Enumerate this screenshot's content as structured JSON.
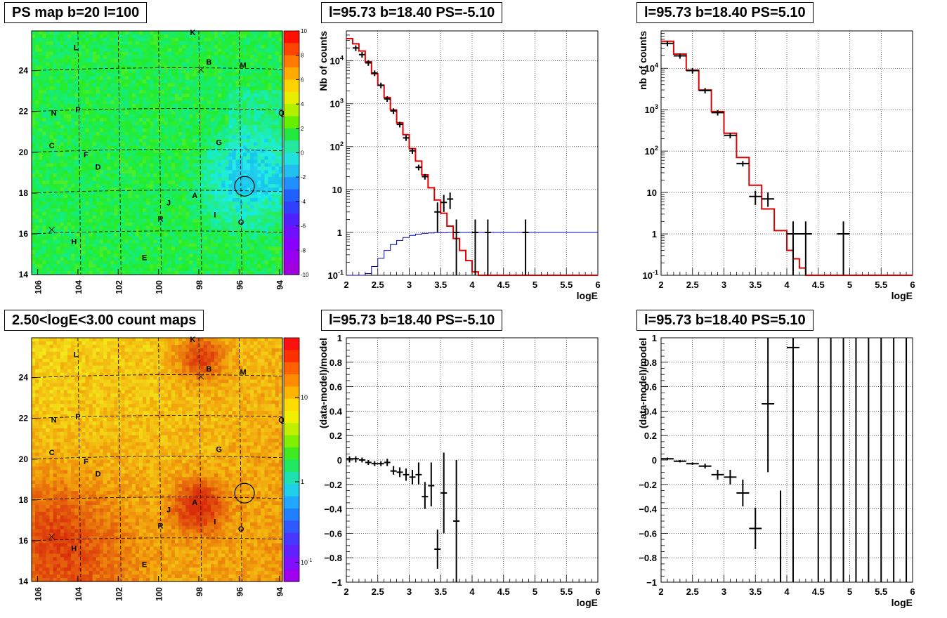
{
  "map_labels": [
    {
      "t": "K",
      "l": 98.3,
      "b": 25.75
    },
    {
      "t": "L",
      "l": 104.1,
      "b": 25.0
    },
    {
      "t": "B",
      "l": 97.5,
      "b": 24.3
    },
    {
      "t": "M",
      "l": 95.8,
      "b": 24.15
    },
    {
      "t": "N",
      "l": 105.2,
      "b": 21.8
    },
    {
      "t": "P",
      "l": 104.0,
      "b": 21.95
    },
    {
      "t": "Q",
      "l": 93.9,
      "b": 21.8
    },
    {
      "t": "C",
      "l": 105.3,
      "b": 20.2
    },
    {
      "t": "F",
      "l": 103.6,
      "b": 19.75
    },
    {
      "t": "D",
      "l": 103.0,
      "b": 19.15
    },
    {
      "t": "G",
      "l": 97.0,
      "b": 20.35
    },
    {
      "t": "J",
      "l": 99.5,
      "b": 17.4
    },
    {
      "t": "A",
      "l": 98.2,
      "b": 17.75
    },
    {
      "t": "I",
      "l": 97.2,
      "b": 16.8
    },
    {
      "t": "R",
      "l": 99.9,
      "b": 16.6
    },
    {
      "t": "O",
      "l": 95.9,
      "b": 16.45
    },
    {
      "t": "H",
      "l": 104.2,
      "b": 15.5
    },
    {
      "t": "E",
      "l": 100.7,
      "b": 14.7
    }
  ],
  "map_crosses": [
    {
      "l": 97.9,
      "b": 24.05
    },
    {
      "l": 105.3,
      "b": 16.2
    }
  ],
  "map_circle": {
    "l": 95.73,
    "b": 18.4
  },
  "map_xticks": [
    "106",
    "104",
    "102",
    "100",
    "98",
    "96",
    "94"
  ],
  "map_yticks": [
    "14",
    "16",
    "18",
    "20",
    "22",
    "24"
  ],
  "psmap": {
    "title": "PS map b=20 l=100",
    "colorbar_ticks": [
      "10",
      "8",
      "6",
      "4",
      "2",
      "0",
      "-2",
      "-4",
      "-6",
      "-8",
      "-10"
    ]
  },
  "countmap": {
    "title": "2.50<logE<3.00 count maps",
    "colorbar_ticks": [
      "10",
      "1",
      "10-1"
    ]
  },
  "colors": {
    "psmap_base": "#4be83a",
    "countmap_base": "#f0c228",
    "model": "#e00000",
    "flat": "#0000c0"
  },
  "chart_data": [
    {
      "type": "line",
      "panel": "spectrum-ps-neg",
      "title": "l=95.73 b=18.40 PS=-5.10",
      "xlabel": "logE",
      "ylabel": "Nb of counts",
      "xlim": [
        2,
        6
      ],
      "ylim": [
        0.1,
        50000
      ],
      "yscale": "log",
      "grid": true,
      "xticks": [
        "2",
        "2.5",
        "3",
        "3.5",
        "4",
        "4.5",
        "5",
        "5.5",
        "6"
      ],
      "yticks": [
        {
          "v": 0.1,
          "t": "10",
          "sup": "-1"
        },
        {
          "v": 1,
          "t": "1",
          "sup": ""
        },
        {
          "v": 10,
          "t": "10",
          "sup": ""
        },
        {
          "v": 100,
          "t": "10",
          "sup": "2"
        },
        {
          "v": 1000,
          "t": "10",
          "sup": "3"
        },
        {
          "v": 10000,
          "t": "10",
          "sup": "4"
        }
      ],
      "model": {
        "edges": [
          2,
          2.1,
          2.2,
          2.3,
          2.4,
          2.5,
          2.6,
          2.7,
          2.8,
          2.9,
          3,
          3.1,
          3.2,
          3.3,
          3.4,
          3.5,
          3.6,
          3.7,
          3.8,
          3.9,
          4,
          4.1,
          4.2,
          4.3,
          4.4,
          4.5,
          4.6,
          4.7,
          4.8,
          4.9,
          5,
          5.1,
          5.2,
          5.3,
          5.4,
          5.5,
          5.6,
          5.7,
          5.8,
          5.9,
          6
        ],
        "values": [
          33000,
          25000,
          17000,
          9500,
          5000,
          2700,
          1400,
          720,
          360,
          190,
          90,
          46,
          22,
          11,
          5.7,
          2.8,
          1.4,
          0.72,
          0.38,
          0.22,
          0.12,
          0.1,
          0.1,
          0.1,
          0.1,
          0.1,
          0.1,
          0.1,
          0.1,
          0.1,
          0.1,
          0.1,
          0.1,
          0.1,
          0.1,
          0.1,
          0.1,
          0.1,
          0.1,
          0.1
        ]
      },
      "flat": {
        "edges": [
          2,
          2.1,
          2.2,
          2.3,
          2.4,
          2.5,
          2.6,
          2.7,
          2.8,
          2.9,
          3,
          3.1,
          3.2,
          3.3,
          3.4,
          3.5,
          3.6,
          3.7,
          3.8,
          3.9,
          4,
          4.1,
          4.2,
          4.3,
          4.4,
          4.5,
          4.6,
          4.7,
          4.8,
          4.9,
          5,
          5.1,
          5.2,
          5.3,
          5.4,
          5.5,
          5.6,
          5.7,
          5.8,
          5.9,
          6
        ],
        "values": [
          0.1,
          0.1,
          0.1,
          0.11,
          0.16,
          0.25,
          0.38,
          0.52,
          0.65,
          0.76,
          0.85,
          0.91,
          0.95,
          0.97,
          0.99,
          0.99,
          1,
          1,
          1,
          1,
          1,
          1,
          1,
          1,
          1,
          1,
          1,
          1,
          1,
          1,
          1,
          1,
          1,
          1,
          1,
          1,
          1,
          1,
          1,
          1,
          1
        ]
      },
      "points": [
        {
          "x": 2.15,
          "y": 20000,
          "xw": 0.05
        },
        {
          "x": 2.25,
          "y": 14000,
          "xw": 0.05
        },
        {
          "x": 2.35,
          "y": 9000,
          "xw": 0.05
        },
        {
          "x": 2.45,
          "y": 5200,
          "xw": 0.05
        },
        {
          "x": 2.55,
          "y": 2700,
          "xw": 0.05
        },
        {
          "x": 2.65,
          "y": 1300,
          "xw": 0.05
        },
        {
          "x": 2.75,
          "y": 680,
          "xw": 0.05
        },
        {
          "x": 2.85,
          "y": 330,
          "xw": 0.05
        },
        {
          "x": 2.95,
          "y": 160,
          "xw": 0.05
        },
        {
          "x": 3.05,
          "y": 80,
          "xw": 0.05
        },
        {
          "x": 3.15,
          "y": 33,
          "xw": 0.05
        },
        {
          "x": 3.25,
          "y": 20,
          "xw": 0.05
        },
        {
          "x": 3.45,
          "y": 3,
          "xw": 0.05,
          "ylo": 1,
          "yhi": 5
        },
        {
          "x": 3.55,
          "y": 5,
          "xw": 0.05,
          "ylo": 3,
          "yhi": 7.5
        },
        {
          "x": 3.65,
          "y": 6,
          "xw": 0.05,
          "ylo": 3.5,
          "yhi": 8.5
        },
        {
          "x": 3.75,
          "y": 1,
          "xw": 0.05,
          "ylo": 0.1,
          "yhi": 2
        },
        {
          "x": 4.05,
          "y": 1,
          "xw": 0.05,
          "ylo": 0.1,
          "yhi": 2
        },
        {
          "x": 4.25,
          "y": 1,
          "xw": 0.05,
          "ylo": 0.1,
          "yhi": 2
        },
        {
          "x": 4.85,
          "y": 1,
          "xw": 0.05,
          "ylo": 0.1,
          "yhi": 2
        }
      ]
    },
    {
      "type": "line",
      "panel": "spectrum-ps-pos",
      "title": "l=95.73 b=18.40 PS=5.10",
      "xlabel": "logE",
      "ylabel": "nb of counts",
      "xlim": [
        2,
        6
      ],
      "ylim": [
        0.1,
        80000
      ],
      "yscale": "log",
      "grid": true,
      "xticks": [
        "2",
        "2.5",
        "3",
        "3.5",
        "4",
        "4.5",
        "5",
        "5.5",
        "6"
      ],
      "yticks": [
        {
          "v": 0.1,
          "t": "10",
          "sup": "-1"
        },
        {
          "v": 1,
          "t": "1",
          "sup": ""
        },
        {
          "v": 10,
          "t": "10",
          "sup": ""
        },
        {
          "v": 100,
          "t": "10",
          "sup": "2"
        },
        {
          "v": 1000,
          "t": "10",
          "sup": "3"
        },
        {
          "v": 10000,
          "t": "10",
          "sup": "4"
        }
      ],
      "model": {
        "edges": [
          2,
          2.2,
          2.4,
          2.6,
          2.8,
          3,
          3.2,
          3.4,
          3.6,
          3.8,
          4,
          4.1,
          4.2,
          4.3,
          4.4,
          4.6,
          4.8,
          5,
          5.2,
          5.4,
          5.6,
          5.8,
          6
        ],
        "values": [
          45000,
          22000,
          9000,
          3000,
          900,
          270,
          70,
          15,
          4,
          1.2,
          0.4,
          0.25,
          0.15,
          0.1,
          0.1,
          0.1,
          0.1,
          0.1,
          0.1,
          0.1,
          0.1,
          0.1
        ]
      },
      "points": [
        {
          "x": 2.1,
          "y": 40000,
          "xw": 0.1
        },
        {
          "x": 2.3,
          "y": 20000,
          "xw": 0.1
        },
        {
          "x": 2.5,
          "y": 8800,
          "xw": 0.1
        },
        {
          "x": 2.7,
          "y": 2900,
          "xw": 0.1
        },
        {
          "x": 2.9,
          "y": 850,
          "xw": 0.1
        },
        {
          "x": 3.1,
          "y": 240,
          "xw": 0.1
        },
        {
          "x": 3.3,
          "y": 50,
          "xw": 0.1
        },
        {
          "x": 3.5,
          "y": 8,
          "xw": 0.1,
          "ylo": 5,
          "yhi": 11
        },
        {
          "x": 3.7,
          "y": 7,
          "xw": 0.1,
          "ylo": 4.5,
          "yhi": 10
        },
        {
          "x": 4.1,
          "y": 1,
          "xw": 0.1,
          "ylo": 0.1,
          "yhi": 2
        },
        {
          "x": 4.3,
          "y": 1,
          "xw": 0.1,
          "ylo": 0.1,
          "yhi": 2
        },
        {
          "x": 4.9,
          "y": 1,
          "xw": 0.1,
          "ylo": 0.1,
          "yhi": 2
        }
      ]
    },
    {
      "type": "scatter",
      "panel": "residual-ps-neg",
      "title": "l=95.73 b=18.40 PS=-5.10",
      "xlabel": "logE",
      "ylabel": "(data-model)/model",
      "xlim": [
        2,
        6
      ],
      "ylim": [
        -1,
        1
      ],
      "grid": true,
      "xticks": [
        "2",
        "2.5",
        "3",
        "3.5",
        "4",
        "4.5",
        "5",
        "5.5",
        "6"
      ],
      "yticks": [
        "-1",
        "-0.8",
        "-0.6",
        "-0.4",
        "-0.2",
        "0",
        "0.2",
        "0.4",
        "0.6",
        "0.8",
        "1"
      ],
      "points": [
        {
          "x": 2.05,
          "y": 0.01,
          "xw": 0.05,
          "ylo": -0.02,
          "yhi": 0.03
        },
        {
          "x": 2.15,
          "y": 0.01,
          "xw": 0.05,
          "ylo": -0.02,
          "yhi": 0.03
        },
        {
          "x": 2.25,
          "y": 0.0,
          "xw": 0.05,
          "ylo": -0.02,
          "yhi": 0.02
        },
        {
          "x": 2.35,
          "y": -0.02,
          "xw": 0.05,
          "ylo": -0.04,
          "yhi": 0.0
        },
        {
          "x": 2.45,
          "y": -0.03,
          "xw": 0.05,
          "ylo": -0.05,
          "yhi": -0.01
        },
        {
          "x": 2.55,
          "y": -0.03,
          "xw": 0.05,
          "ylo": -0.05,
          "yhi": -0.01
        },
        {
          "x": 2.65,
          "y": -0.02,
          "xw": 0.05,
          "ylo": -0.05,
          "yhi": 0.01
        },
        {
          "x": 2.75,
          "y": -0.09,
          "xw": 0.05,
          "ylo": -0.12,
          "yhi": -0.05
        },
        {
          "x": 2.85,
          "y": -0.1,
          "xw": 0.05,
          "ylo": -0.14,
          "yhi": -0.06
        },
        {
          "x": 2.95,
          "y": -0.12,
          "xw": 0.05,
          "ylo": -0.17,
          "yhi": -0.07
        },
        {
          "x": 3.05,
          "y": -0.14,
          "xw": 0.05,
          "ylo": -0.2,
          "yhi": -0.08
        },
        {
          "x": 3.15,
          "y": -0.12,
          "xw": 0.05,
          "ylo": -0.2,
          "yhi": -0.02
        },
        {
          "x": 3.25,
          "y": -0.3,
          "xw": 0.05,
          "ylo": -0.4,
          "yhi": -0.18
        },
        {
          "x": 3.35,
          "y": -0.21,
          "xw": 0.05,
          "ylo": -0.38,
          "yhi": -0.02
        },
        {
          "x": 3.45,
          "y": -0.73,
          "xw": 0.05,
          "ylo": -0.89,
          "yhi": -0.57
        },
        {
          "x": 3.55,
          "y": -0.27,
          "xw": 0.05,
          "ylo": -0.6,
          "yhi": 0.06
        },
        {
          "x": 3.75,
          "y": -0.5,
          "xw": 0.05,
          "ylo": -1,
          "yhi": 0.0
        }
      ]
    },
    {
      "type": "scatter",
      "panel": "residual-ps-pos",
      "title": "l=95.73 b=18.40 PS=5.10",
      "xlabel": "logE",
      "ylabel": "(data-model)/model",
      "xlim": [
        2,
        6
      ],
      "ylim": [
        -1,
        1
      ],
      "grid": true,
      "xticks": [
        "2",
        "2.5",
        "3",
        "3.5",
        "4",
        "4.5",
        "5",
        "5.5",
        "6"
      ],
      "yticks": [
        "-1",
        "-0.8",
        "-0.6",
        "-0.4",
        "-0.2",
        "0",
        "0.2",
        "0.4",
        "0.6",
        "0.8",
        "1"
      ],
      "points": [
        {
          "x": 2.1,
          "y": 0.01,
          "xw": 0.1,
          "ylo": 0.0,
          "yhi": 0.02
        },
        {
          "x": 2.3,
          "y": -0.01,
          "xw": 0.1,
          "ylo": -0.02,
          "yhi": 0.0
        },
        {
          "x": 2.5,
          "y": -0.03,
          "xw": 0.1,
          "ylo": -0.04,
          "yhi": -0.02
        },
        {
          "x": 2.7,
          "y": -0.05,
          "xw": 0.1,
          "ylo": -0.07,
          "yhi": -0.03
        },
        {
          "x": 2.9,
          "y": -0.12,
          "xw": 0.1,
          "ylo": -0.16,
          "yhi": -0.08
        },
        {
          "x": 3.1,
          "y": -0.14,
          "xw": 0.1,
          "ylo": -0.2,
          "yhi": -0.08
        },
        {
          "x": 3.3,
          "y": -0.27,
          "xw": 0.1,
          "ylo": -0.38,
          "yhi": -0.16
        },
        {
          "x": 3.5,
          "y": -0.56,
          "xw": 0.1,
          "ylo": -0.73,
          "yhi": -0.39
        },
        {
          "x": 3.7,
          "y": 0.46,
          "xw": 0.1,
          "ylo": -0.1,
          "yhi": 1.0
        },
        {
          "x": 3.9,
          "y": -1,
          "xw": 0,
          "ylo": -1,
          "yhi": -0.25
        },
        {
          "x": 4.1,
          "y": 0.92,
          "xw": 0.1,
          "ylo": -1,
          "yhi": 1.0
        },
        {
          "x": 4.5,
          "y": 0,
          "xw": 0,
          "ylo": -1,
          "yhi": 1
        },
        {
          "x": 4.7,
          "y": 0,
          "xw": 0,
          "ylo": -1,
          "yhi": 1
        },
        {
          "x": 4.9,
          "y": 0,
          "xw": 0,
          "ylo": -1,
          "yhi": 1
        },
        {
          "x": 5.1,
          "y": 0,
          "xw": 0,
          "ylo": -1,
          "yhi": 1
        },
        {
          "x": 5.3,
          "y": 0,
          "xw": 0,
          "ylo": -1,
          "yhi": 1
        },
        {
          "x": 5.5,
          "y": 0,
          "xw": 0,
          "ylo": -1,
          "yhi": 1
        },
        {
          "x": 5.7,
          "y": 0,
          "xw": 0,
          "ylo": -1,
          "yhi": 1
        },
        {
          "x": 5.9,
          "y": 0,
          "xw": 0,
          "ylo": -1,
          "yhi": 1
        }
      ]
    }
  ]
}
